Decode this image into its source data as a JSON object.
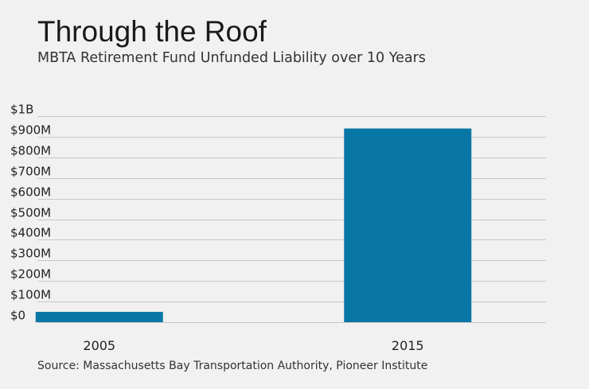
{
  "title": "Through the Roof",
  "subtitle": "MBTA Retirement Fund Unfunded Liability over 10 Years",
  "source": "Source: Massachusetts Bay Transportation Authority, Pioneer Institute",
  "colors": {
    "bar": "#0977a6",
    "grid": "#c8c8c8",
    "background": "#f1f1f1"
  },
  "chart_data": {
    "type": "bar",
    "categories": [
      "2005",
      "2015"
    ],
    "values": [
      50,
      940
    ],
    "units": "millions of dollars",
    "ylim": [
      0,
      1000
    ],
    "yticks": [
      0,
      100,
      200,
      300,
      400,
      500,
      600,
      700,
      800,
      900,
      1000
    ],
    "ytick_labels": [
      "$0",
      "$100M",
      "$200M",
      "$300M",
      "$400M",
      "$500M",
      "$600M",
      "$700M",
      "$800M",
      "$900M",
      "$1B"
    ],
    "xlabel": "",
    "ylabel": "",
    "grid": true,
    "legend": "none"
  }
}
